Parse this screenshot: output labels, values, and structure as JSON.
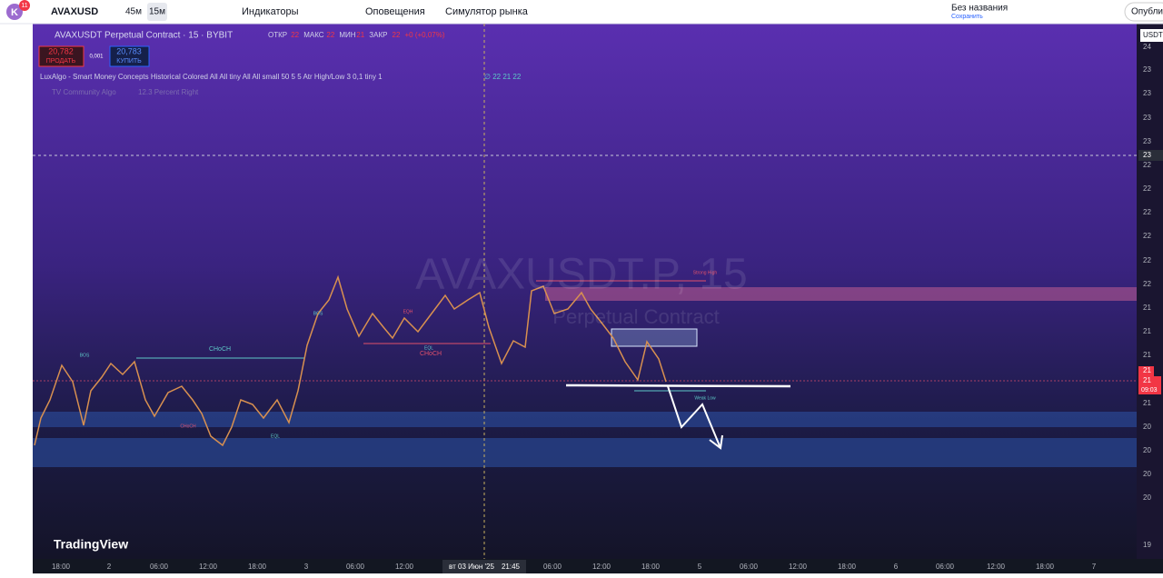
{
  "toolbar": {
    "avatar": "K",
    "badge": "11",
    "symbol": "AVAXUSD",
    "intervals": [
      "45м",
      "15м"
    ],
    "indicators": "Индикаторы",
    "alerts": "Оповещения",
    "replay": "Симулятор рынка",
    "layout_name": "Без названия",
    "layout_status": "Сохранить",
    "publish": "Опубли"
  },
  "legend": {
    "title": "AVAXUSDT Perpetual Contract · 15 · BYBIT",
    "ohlc": [
      {
        "label": "ОТКР",
        "value": "22"
      },
      {
        "label": "МАКС",
        "value": "22"
      },
      {
        "label": "МИН",
        "value": "21"
      },
      {
        "label": "ЗАКР",
        "value": "22"
      }
    ],
    "change": "+0 (+0,07%)",
    "sell_price": "20,782",
    "sell": "ПРОДАТЬ",
    "spread": "0,001",
    "buy_price": "20,783",
    "buy": "КУПИТЬ",
    "indicator": "LuxAlgo - Smart Money Concepts Historical Colored All All tiny All All small 50 5 5 Atr High/Low 3 0,1 tiny 1",
    "indicator_values": "∅ 22 21 22",
    "scripts": [
      "TV Community Algo",
      "12.3 Percent Right"
    ]
  },
  "watermark": {
    "symbol": "AVAXUSDT.P, 15",
    "description": "Perpetual Contract"
  },
  "annotations": [
    "BOS",
    "CHoCH",
    "EQL",
    "EQH",
    "BOS",
    "CHoCH",
    "EQL",
    "CHoCH",
    "Strong High",
    "Weak Low"
  ],
  "price_axis": {
    "currency": "USDT",
    "labels": [
      "24",
      "23",
      "23",
      "23",
      "23",
      "22",
      "22",
      "22",
      "22",
      "22",
      "22",
      "21",
      "21",
      "21",
      "21",
      "20",
      "20",
      "20",
      "20",
      "19"
    ],
    "crosshair": "23",
    "last": "21",
    "last_prev": "21",
    "countdown": "09:03"
  },
  "time_axis": {
    "labels": [
      "18:00",
      "2",
      "06:00",
      "12:00",
      "18:00",
      "3",
      "06:00",
      "12:00",
      "06:00",
      "12:00",
      "18:00",
      "5",
      "06:00",
      "12:00",
      "18:00",
      "6",
      "06:00",
      "12:00",
      "18:00",
      "7"
    ],
    "crosshair_date": "вт 03 Июн '25",
    "crosshair_time": "21:45"
  },
  "brand": "TradingView"
}
